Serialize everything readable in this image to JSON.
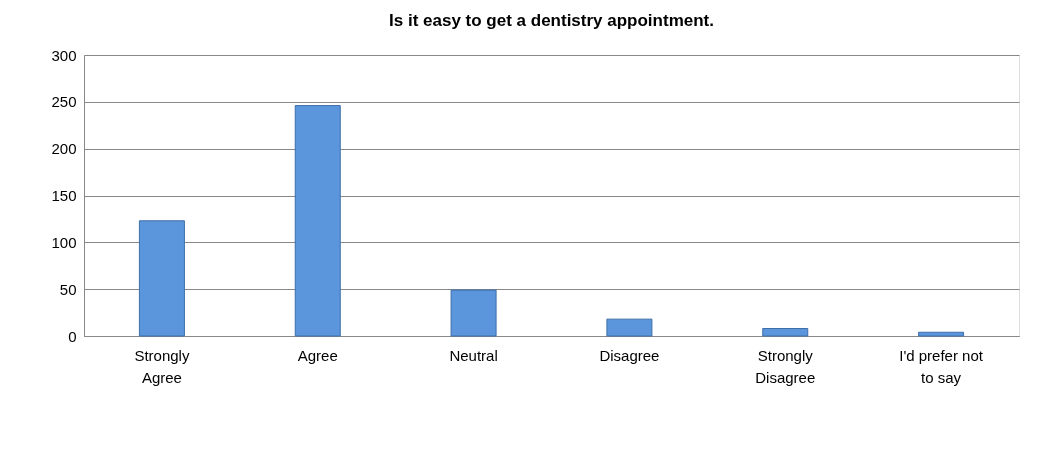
{
  "chart_data": {
    "type": "bar",
    "title": "Is it easy to get a dentistry appointment.",
    "categories": [
      "Strongly\nAgree",
      "Agree",
      "Neutral",
      "Disagree",
      "Strongly\nDisagree",
      "I'd prefer not\nto say"
    ],
    "values": [
      123,
      246,
      49,
      18,
      8,
      4
    ],
    "color": "#5b96dc",
    "ylim": [
      0,
      300
    ],
    "yticks": [
      0,
      50,
      100,
      150,
      200,
      250,
      300
    ],
    "grid": "y"
  }
}
